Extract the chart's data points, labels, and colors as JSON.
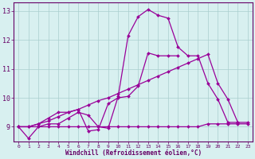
{
  "x": [
    0,
    1,
    2,
    3,
    4,
    5,
    6,
    7,
    8,
    9,
    10,
    11,
    12,
    13,
    14,
    15,
    16,
    17,
    18,
    19,
    20,
    21,
    22,
    23
  ],
  "line1": [
    9.0,
    8.6,
    9.0,
    9.1,
    9.1,
    9.3,
    9.5,
    9.4,
    9.0,
    8.95,
    10.05,
    12.15,
    12.8,
    13.05,
    12.85,
    12.75,
    11.75,
    11.45,
    11.45,
    10.5,
    9.95,
    9.15,
    9.15,
    9.15
  ],
  "line2": [
    9.0,
    9.0,
    9.1,
    9.2,
    9.35,
    9.5,
    9.6,
    9.75,
    9.9,
    10.0,
    10.15,
    10.3,
    10.45,
    10.6,
    10.75,
    10.9,
    11.05,
    11.2,
    11.35,
    11.5,
    10.5,
    9.95,
    9.15,
    null
  ],
  "line3": [
    9.0,
    9.0,
    9.0,
    9.0,
    9.0,
    9.0,
    9.0,
    9.0,
    9.0,
    9.0,
    9.0,
    9.0,
    9.0,
    9.0,
    9.0,
    9.0,
    9.0,
    9.0,
    9.0,
    9.1,
    9.1,
    9.1,
    9.1,
    9.1
  ],
  "line4": [
    9.0,
    9.0,
    9.1,
    9.3,
    9.5,
    9.5,
    9.6,
    8.85,
    8.9,
    9.8,
    10.0,
    10.05,
    10.4,
    11.55,
    11.45,
    11.45,
    11.45,
    null,
    null,
    null,
    null,
    null,
    null,
    null
  ],
  "xlabel": "Windchill (Refroidissement éolien,°C)",
  "ylim": [
    8.5,
    13.3
  ],
  "xlim": [
    -0.5,
    23.5
  ],
  "yticks": [
    9,
    10,
    11,
    12,
    13
  ],
  "xticks": [
    0,
    1,
    2,
    3,
    4,
    5,
    6,
    7,
    8,
    9,
    10,
    11,
    12,
    13,
    14,
    15,
    16,
    17,
    18,
    19,
    20,
    21,
    22,
    23
  ],
  "line_color": "#990099",
  "bg_color": "#d8f0f0",
  "grid_color": "#aacece",
  "axis_color": "#660066",
  "tick_color": "#660066"
}
